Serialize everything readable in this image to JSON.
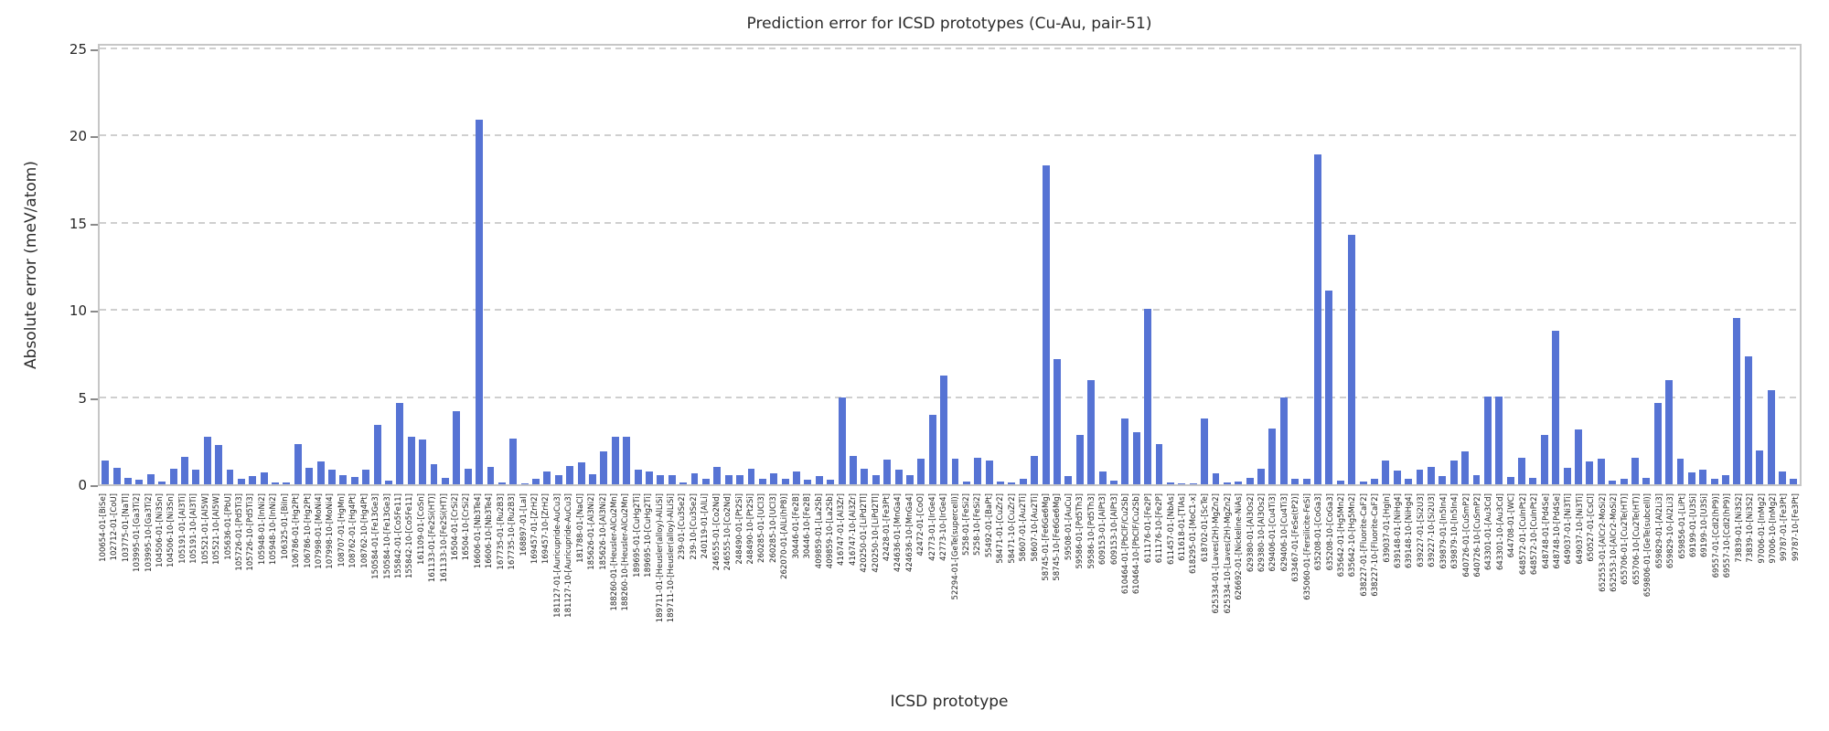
{
  "chart_data": {
    "type": "bar",
    "title": "Prediction error for ICSD prototypes (Cu-Au, pair-51)",
    "xlabel": "ICSD prototype",
    "ylabel": "Absolute error (meV/atom)",
    "ylim": [
      0,
      25
    ],
    "yticks": [
      0,
      5,
      10,
      15,
      20,
      25
    ],
    "grid": "horizontal-dashed",
    "legend": "none",
    "bar_color": "#5673d4",
    "categories": [
      "100654-01-[BiSe]",
      "102712-01-[CoU]",
      "103775-01-[NaTl]",
      "103995-01-[Ga3Ti2]",
      "103995-10-[Ga3Ti2]",
      "104506-01-[Ni3Sn]",
      "104506-10-[Ni3Sn]",
      "105191-01-[Al3Ti]",
      "105191-10-[Al3Ti]",
      "105521-01-[Al5W]",
      "105521-10-[Al5W]",
      "105636-01-[PbU]",
      "105726-01-[Pd5Ti3]",
      "105726-10-[Pd5Ti3]",
      "105948-01-[InNi2]",
      "105948-10-[InNi2]",
      "106325-01-[BiIn]",
      "106786-01-[Hg2Pt]",
      "106786-10-[Hg2Pt]",
      "107998-01-[MoNi4]",
      "107998-10-[MoNi4]",
      "108707-01-[HgMn]",
      "108762-01-[Hg4Pt]",
      "108762-10-[Hg4Pt]",
      "150584-01-[Fe13Ge3]",
      "150584-10-[Fe13Ge3]",
      "155842-01-[Co5Fe11]",
      "155842-10-[Co5Fe11]",
      "161109-01-[CoSn]",
      "161133-01-[Fe2Si(HT)]",
      "161133-10-[Fe2Si(HT)]",
      "16504-01-[CrSi2]",
      "16504-10-[CrSi2]",
      "16606-01-[Nb3Te4]",
      "16606-10-[Nb3Te4]",
      "167735-01-[Ru2B3]",
      "167735-10-[Ru2B3]",
      "168897-01-[LaI]",
      "169457-01-[ZrH2]",
      "169457-10-[ZrH2]",
      "181127-01-[Auricupride-AuCu3]",
      "181127-10-[Auricupride-AuCu3]",
      "181788-01-[NaCl]",
      "185626-01-[Al3Ni2]",
      "185626-10-[Al3Ni2]",
      "188260-01-[Heusler-AlCu2Mn]",
      "188260-10-[Heusler-AlCu2Mn]",
      "189695-01-[CuHg2Ti]",
      "189695-10-[CuHg2Ti]",
      "189711-01-[Heusler(alloy)-AlLiSi]",
      "189711-10-[Heusler(alloy)-AlLiSi]",
      "239-01-[Cu3Se2]",
      "239-10-[Cu3Se2]",
      "240119-01-[AlLi]",
      "246555-01-[Co2Nd]",
      "246555-10-[Co2Nd]",
      "248490-01-[Pt2Si]",
      "248490-10-[Pt2Si]",
      "260285-01-[UCl3]",
      "260285-10-[UCl3]",
      "262070-01-[AlLi(hP8)]",
      "30446-01-[Fe2B]",
      "30446-10-[Fe2B]",
      "409859-01-[La2Sb]",
      "409859-10-[La2Sb]",
      "416747-01-[Al3Zr]",
      "416747-10-[Al3Zr]",
      "420250-01-[LiPd2Tl]",
      "420250-10-[LiPd2Tl]",
      "42428-01-[Fe3Pt]",
      "424636-01-[MnGa4]",
      "424636-10-[MnGa4]",
      "42472-01-[CoO]",
      "42773-01-[IrGe4]",
      "42773-10-[IrGe4]",
      "52294-01-[GeTe(supercell)]",
      "5258-01-[FeSi2]",
      "5258-10-[FeSi2]",
      "55492-01-[BaPt]",
      "58471-01-[CuZr2]",
      "58471-10-[CuZr2]",
      "58607-01-[Au2Ti]",
      "58607-10-[Au2Ti]",
      "58745-01-[Fe6Ge6Mg]",
      "58745-10-[Fe6Ge6Mg]",
      "59508-01-[AuCu]",
      "59586-01-[Pd5Th3]",
      "59586-10-[Pd5Th3]",
      "609153-01-[AlPt3]",
      "609153-10-[AlPt3]",
      "610464-01-[PbClF/Cu2Sb]",
      "610464-10-[PbClF/Cu2Sb]",
      "611176-01-[Fe2P]",
      "611176-10-[Fe2P]",
      "611457-01-[NbAs]",
      "611618-01-[TlAs]",
      "618295-01-[MoC1-x]",
      "618702-01-[ScTe]",
      "625334-01-[Laves(2H)-MgZn2]",
      "625334-10-[Laves(2H)-MgZn2]",
      "626692-01-[Nickeline-NiAs]",
      "629380-01-[Al3Os2]",
      "629380-10-[Al3Os2]",
      "629406-01-[Cu4Ti3]",
      "629406-10-[Cu4Ti3]",
      "633467-01-[FeSe(tP2)]",
      "635060-01-[Fersilicite-FeSi]",
      "635208-01-[CoGa3]",
      "635208-10-[CoGa3]",
      "635642-01-[Hg5Mn2]",
      "635642-10-[Hg5Mn2]",
      "638227-01-[Fluorite-CaF2]",
      "638227-10-[Fluorite-CaF2]",
      "639037-01-[HgIn]",
      "639148-01-[NiHg4]",
      "639148-10-[NiHg4]",
      "639227-01-[Si2U3]",
      "639227-10-[Si2U3]",
      "639879-01-[In5In4]",
      "639879-10-[In5In4]",
      "640726-01-[CuSmP2]",
      "640726-10-[CuSmP2]",
      "643301-01-[Au3Cd]",
      "643301-10-[Au3Cd]",
      "644708-01-[WC]",
      "648572-01-[CuInPt2]",
      "648572-10-[CuInPt2]",
      "648748-01-[Pd4Se]",
      "648748-10-[Pd4Se]",
      "649037-01-[Ni3Ti]",
      "649037-10-[Ni3Ti]",
      "650527-01-[CsCl]",
      "652553-01-[AlCr2-MoSi2]",
      "652553-10-[AlCr2-MoSi2]",
      "655706-01-[Cu2Te(HT)]",
      "655706-10-[Cu2Te(HT)]",
      "659806-01-[GeTe(subcell)]",
      "659829-01-[Al2Li3]",
      "659829-10-[Al2Li3]",
      "659856-01-[LiPt]",
      "69199-01-[U3Si]",
      "69199-10-[U3Si]",
      "69557-01-[CdI2(hP9)]",
      "69557-10-[CdI2(hP9)]",
      "73839-01-[Ni3S2]",
      "73839-10-[Ni3S2]",
      "97006-01-[InMg2]",
      "97006-10-[InMg2]",
      "99787-01-[Fe3Pt]",
      "99787-10-[Fe3Pt]"
    ],
    "values": [
      1.35,
      0.95,
      0.35,
      0.25,
      0.6,
      0.15,
      0.9,
      1.55,
      0.85,
      2.7,
      2.25,
      0.85,
      0.3,
      0.45,
      0.7,
      0.1,
      0.1,
      2.3,
      0.95,
      1.3,
      0.85,
      0.5,
      0.4,
      0.85,
      3.4,
      0.2,
      4.65,
      2.75,
      2.55,
      1.15,
      0.35,
      4.2,
      0.9,
      20.9,
      1.0,
      0.1,
      2.6,
      0.05,
      0.3,
      0.75,
      0.55,
      1.05,
      1.25,
      0.6,
      1.9,
      2.75,
      2.75,
      0.85,
      0.75,
      0.5,
      0.5,
      0.1,
      0.65,
      0.3,
      1.0,
      0.5,
      0.5,
      0.9,
      0.3,
      0.65,
      0.3,
      0.75,
      0.25,
      0.45,
      0.25,
      5.0,
      1.6,
      0.9,
      0.55,
      1.4,
      0.85,
      0.5,
      1.45,
      4.0,
      6.25,
      1.45,
      0.15,
      1.5,
      1.35,
      0.15,
      0.1,
      0.3,
      1.6,
      18.3,
      7.2,
      0.45,
      2.85,
      5.95,
      0.75,
      0.2,
      3.75,
      3.0,
      10.05,
      2.3,
      0.1,
      0.05,
      0.05,
      3.8,
      0.65,
      0.1,
      0.15,
      0.35,
      0.9,
      3.2,
      5.0,
      0.3,
      0.3,
      18.9,
      11.1,
      0.2,
      14.3,
      0.15,
      0.3,
      1.35,
      0.8,
      0.3,
      0.85,
      1.0,
      0.45,
      1.35,
      1.9,
      0.55,
      5.05,
      5.05,
      0.4,
      1.5,
      0.35,
      2.85,
      8.8,
      0.95,
      3.15,
      1.3,
      1.45,
      0.2,
      0.3,
      1.5,
      0.35,
      4.65,
      5.95,
      1.45,
      0.7,
      0.85,
      0.3,
      0.5,
      9.55,
      7.35,
      1.95,
      5.4,
      0.75,
      0.3
    ]
  }
}
